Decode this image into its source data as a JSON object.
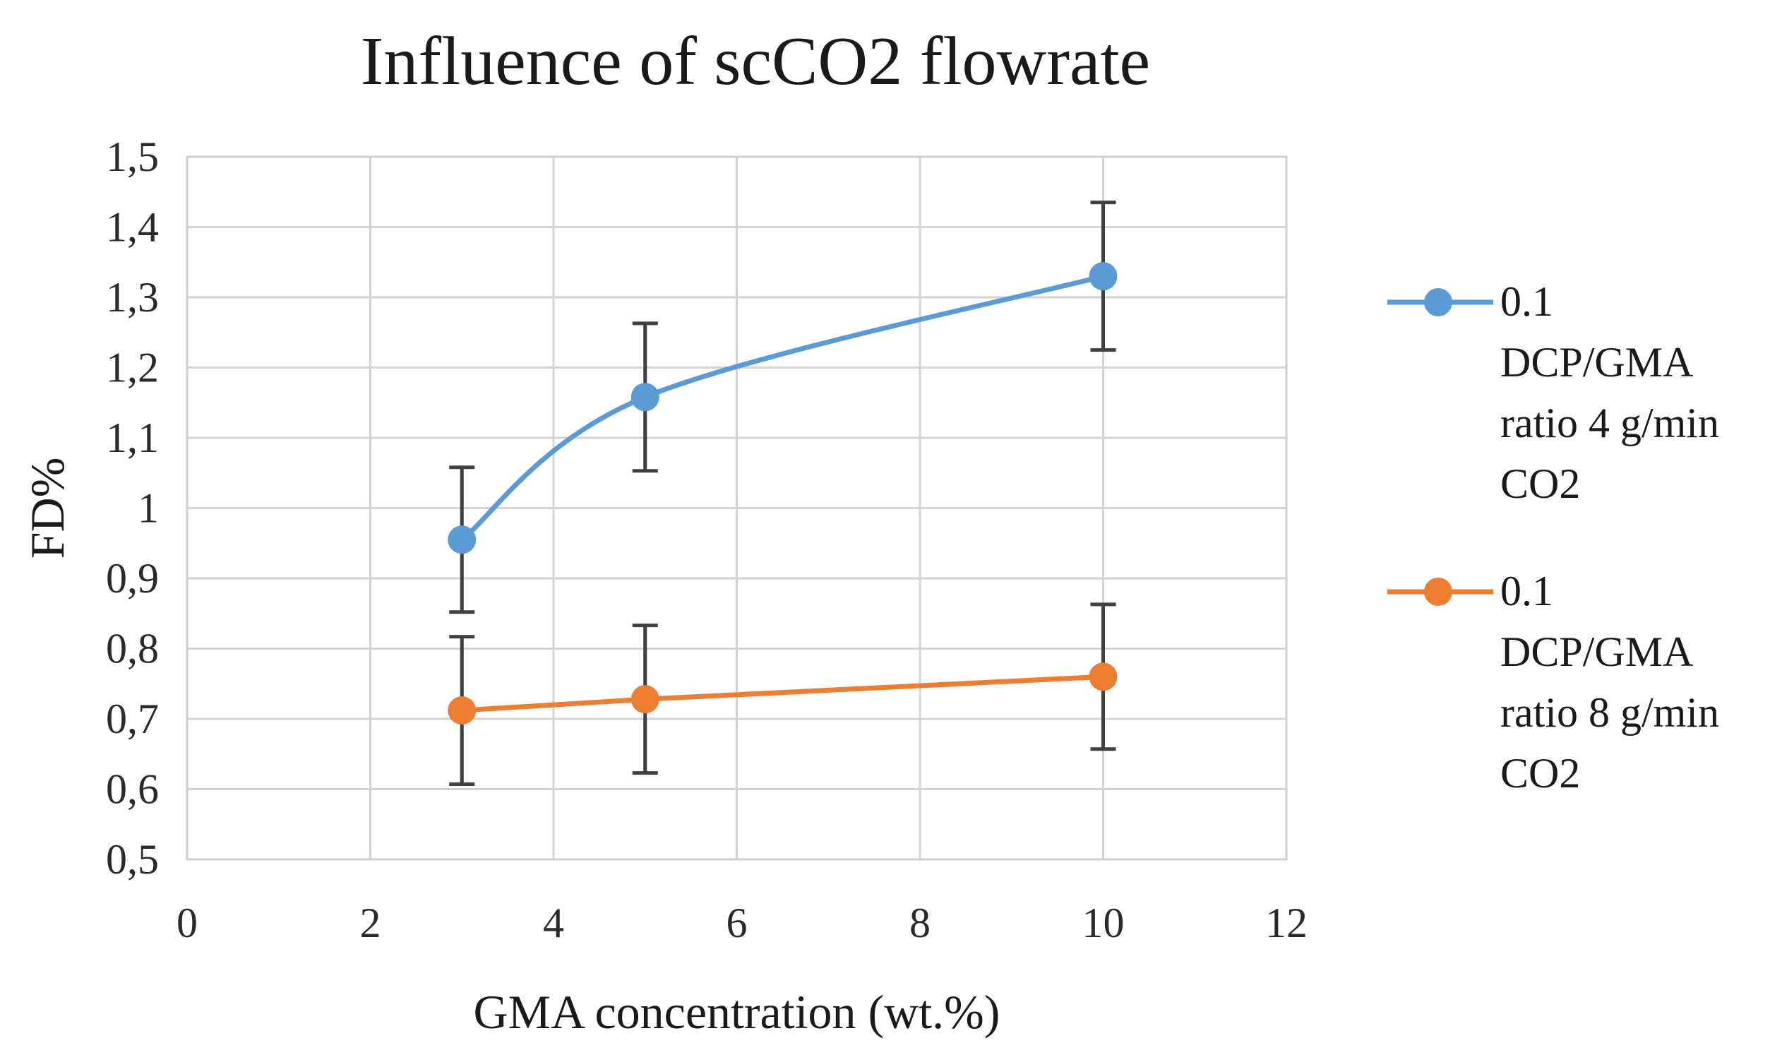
{
  "chart_data": {
    "type": "line",
    "title": "Influence of scCO2 flowrate",
    "xlabel": "GMA concentration (wt.%)",
    "ylabel": "FD%",
    "xlim": [
      0,
      12
    ],
    "ylim": [
      0.5,
      1.5
    ],
    "x_ticks": [
      0,
      2,
      4,
      6,
      8,
      10,
      12
    ],
    "x_tick_labels": [
      "0",
      "2",
      "4",
      "6",
      "8",
      "10",
      "12"
    ],
    "y_ticks": [
      0.5,
      0.6,
      0.7,
      0.8,
      0.9,
      1.0,
      1.1,
      1.2,
      1.3,
      1.4,
      1.5
    ],
    "y_tick_labels": [
      "0,5",
      "0,6",
      "0,7",
      "0,8",
      "0,9",
      "1",
      "1,1",
      "1,2",
      "1,3",
      "1,4",
      "1,5"
    ],
    "grid": true,
    "legend_position": "right",
    "series": [
      {
        "name": "0.1 DCP/GMA ratio 4 g/min CO2",
        "legend_lines": [
          "0.1",
          "DCP/GMA",
          "ratio 4 g/min",
          "CO2"
        ],
        "color": "#5B9BD5",
        "smooth": true,
        "x": [
          3,
          5,
          10
        ],
        "values": [
          0.955,
          1.158,
          1.33
        ],
        "error": [
          0.103,
          0.105,
          0.105
        ]
      },
      {
        "name": "0.1 DCP/GMA ratio 8 g/min CO2",
        "legend_lines": [
          "0.1",
          "DCP/GMA",
          "ratio 8 g/min",
          "CO2"
        ],
        "color": "#ED7D31",
        "smooth": false,
        "x": [
          3,
          5,
          10
        ],
        "values": [
          0.712,
          0.728,
          0.76
        ],
        "error": [
          0.105,
          0.105,
          0.103
        ]
      }
    ],
    "error_bar_color": "#404040"
  }
}
